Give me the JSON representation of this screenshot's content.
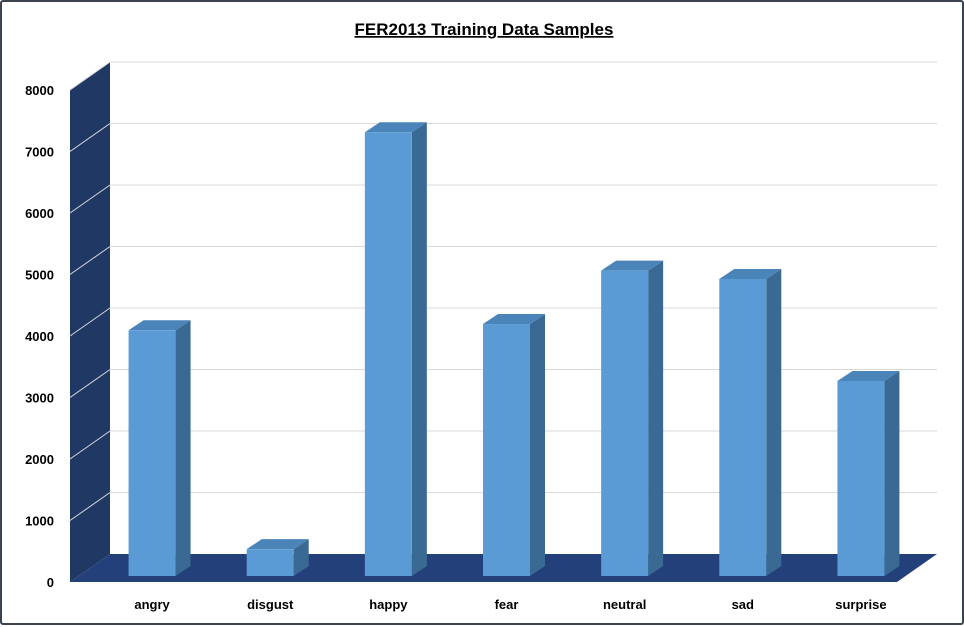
{
  "chart_data": {
    "type": "bar",
    "title": "FER2013 Training  Data Samples",
    "xlabel": "",
    "ylabel": "",
    "categories": [
      "angry",
      "disgust",
      "happy",
      "fear",
      "neutral",
      "sad",
      "surprise"
    ],
    "values": [
      3995,
      436,
      7215,
      4097,
      4965,
      4830,
      3171
    ],
    "ylim": [
      0,
      8000
    ],
    "yticks": [
      "0",
      "1000",
      "2000",
      "3000",
      "4000",
      "5000",
      "6000",
      "7000",
      "8000"
    ],
    "grid": true,
    "legend": "none",
    "style": "3d",
    "colors": {
      "bar_front": "#5b9bd5",
      "bar_side": "#3a6a93",
      "bar_top": "#4a84b8",
      "wall": "#1f3864",
      "floor": "#23407a",
      "grid": "#d9d9d9"
    }
  }
}
